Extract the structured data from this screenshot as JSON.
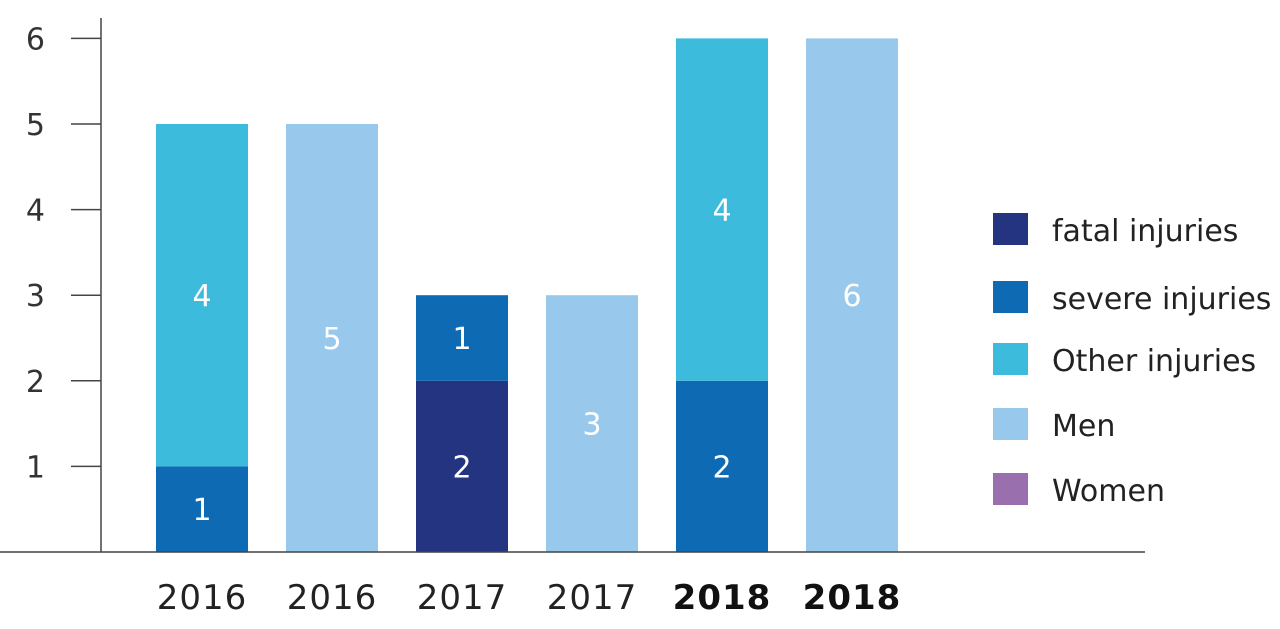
{
  "chart_data": {
    "type": "bar",
    "stacked": true,
    "categories": [
      "2016",
      "2016",
      "2017",
      "2017",
      "2018",
      "2018"
    ],
    "bold_categories": [
      false,
      false,
      false,
      false,
      true,
      true
    ],
    "ylim": [
      0,
      6.5
    ],
    "yticks": [
      1,
      2,
      3,
      4,
      5,
      6
    ],
    "grid": false,
    "legend_position": "right",
    "series": [
      {
        "name": "fatal injuries",
        "color": "#253480",
        "values": [
          0,
          0,
          2,
          0,
          0,
          0
        ]
      },
      {
        "name": "severe injuries",
        "color": "#0f6ab4",
        "values": [
          1,
          0,
          1,
          0,
          2,
          0
        ]
      },
      {
        "name": "Other injuries",
        "color": "#3dbbdd",
        "values": [
          4,
          0,
          0,
          0,
          4,
          0
        ]
      },
      {
        "name": "Men",
        "color": "#98c8ec",
        "values": [
          0,
          5,
          0,
          3,
          0,
          6
        ]
      },
      {
        "name": "Women",
        "color": "#9a6fad",
        "values": [
          0,
          0,
          0,
          0,
          0,
          0
        ]
      }
    ]
  }
}
